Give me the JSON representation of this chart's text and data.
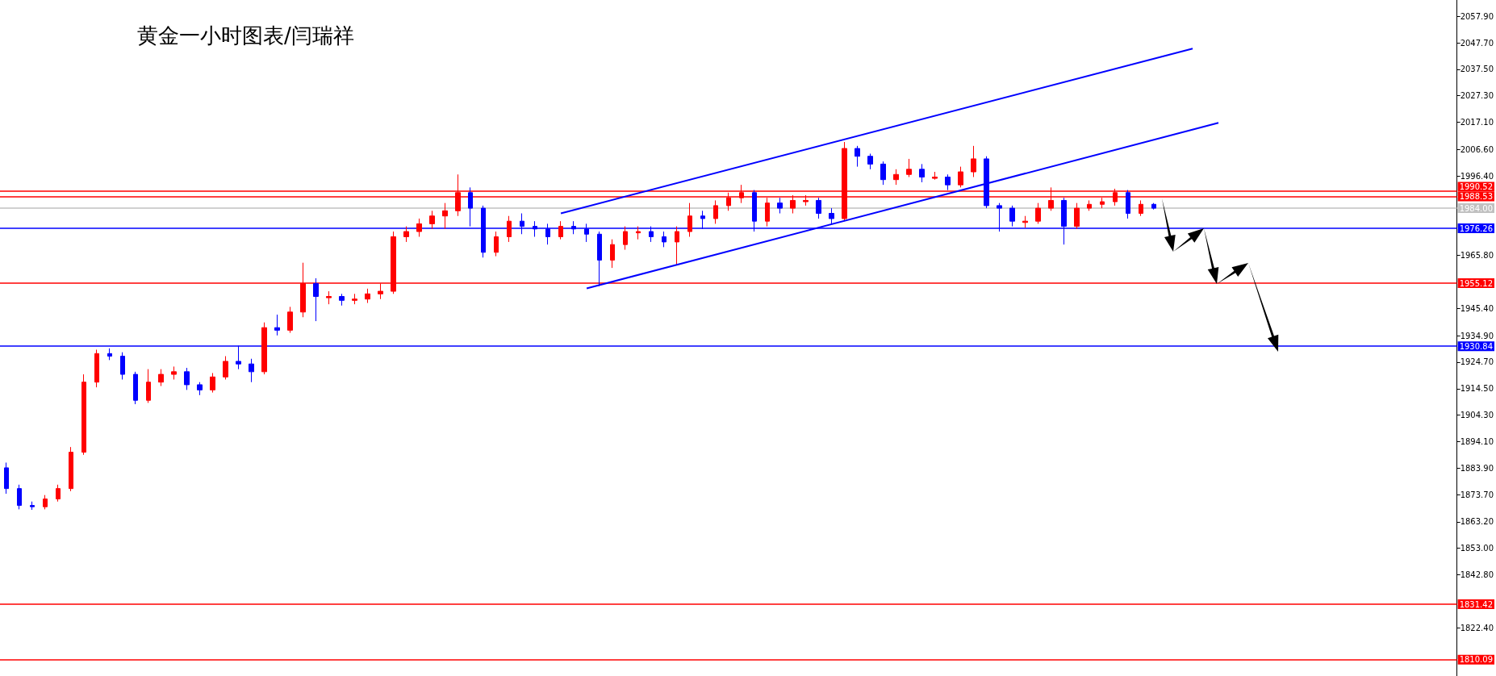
{
  "chart_data": {
    "type": "candlestick",
    "title": "黄金一小时图表/闫瑞祥",
    "categories": [
      null,
      null,
      null,
      null,
      null,
      null,
      null,
      null,
      null,
      null,
      null,
      null,
      null,
      null,
      null,
      null,
      null,
      null,
      null,
      null,
      null,
      null,
      null,
      null,
      null,
      null,
      null,
      null,
      null,
      null,
      null,
      null,
      null,
      null,
      null,
      null,
      null,
      null,
      null,
      null,
      null,
      null,
      null,
      null,
      null,
      null,
      null,
      null,
      null,
      null,
      null,
      null,
      null,
      null,
      null,
      null,
      null,
      null,
      null,
      null,
      null,
      null,
      null,
      null,
      null,
      null,
      null,
      null,
      null,
      null,
      null,
      null,
      null,
      null,
      null,
      null,
      null,
      null,
      null,
      null,
      null,
      null,
      null,
      null,
      null,
      null,
      null,
      null,
      null,
      null,
      null,
      null,
      null,
      null,
      null,
      null,
      null,
      null,
      null,
      null,
      null,
      null,
      null,
      null,
      null,
      null,
      null,
      null,
      null,
      null,
      null,
      null,
      null
    ],
    "ohlc": [
      [
        1884,
        1886,
        1874,
        1876
      ],
      [
        1876,
        1877.5,
        1868,
        1869.5
      ],
      [
        1869.5,
        1871,
        1867.8,
        1869
      ],
      [
        1869,
        1873.5,
        1868,
        1872
      ],
      [
        1872,
        1877.5,
        1871,
        1876
      ],
      [
        1876,
        1892,
        1875,
        1890
      ],
      [
        1890,
        1920,
        1889,
        1917
      ],
      [
        1917,
        1929.5,
        1915,
        1928
      ],
      [
        1928,
        1930,
        1925.5,
        1927
      ],
      [
        1927,
        1928.5,
        1918,
        1920
      ],
      [
        1920,
        1921,
        1908.5,
        1910
      ],
      [
        1910,
        1922,
        1909,
        1917
      ],
      [
        1917,
        1922,
        1915.5,
        1920
      ],
      [
        1920,
        1923,
        1918,
        1921
      ],
      [
        1921,
        1922.5,
        1914,
        1916
      ],
      [
        1916,
        1917,
        1912,
        1914
      ],
      [
        1914,
        1920.5,
        1913,
        1919
      ],
      [
        1919,
        1927,
        1918,
        1925
      ],
      [
        1925,
        1931,
        1922,
        1924
      ],
      [
        1924,
        1926,
        1917,
        1921
      ],
      [
        1921,
        1940,
        1920,
        1938
      ],
      [
        1938,
        1943,
        1935,
        1937
      ],
      [
        1937,
        1946,
        1936,
        1944
      ],
      [
        1944,
        1963,
        1942,
        1955
      ],
      [
        1955,
        1957,
        1940.5,
        1950
      ],
      [
        1949.5,
        1952,
        1947,
        1950
      ],
      [
        1950,
        1951,
        1946.5,
        1948.5
      ],
      [
        1948.5,
        1951,
        1947,
        1949
      ],
      [
        1949,
        1953,
        1947.5,
        1951
      ],
      [
        1951,
        1955,
        1949,
        1952
      ],
      [
        1952,
        1975,
        1951,
        1973
      ],
      [
        1973,
        1977,
        1971,
        1975
      ],
      [
        1975,
        1980,
        1973,
        1978
      ],
      [
        1978,
        1983,
        1976,
        1981
      ],
      [
        1981,
        1986,
        1976,
        1983
      ],
      [
        1983,
        1997,
        1981,
        1990
      ],
      [
        1990,
        1992,
        1977,
        1984
      ],
      [
        1984,
        1985,
        1965,
        1967
      ],
      [
        1967,
        1975,
        1965.5,
        1973
      ],
      [
        1973,
        1981,
        1971,
        1979
      ],
      [
        1979,
        1982,
        1974,
        1977
      ],
      [
        1977,
        1979,
        1973,
        1976
      ],
      [
        1976,
        1978,
        1970,
        1973
      ],
      [
        1973,
        1979,
        1972,
        1977
      ],
      [
        1977,
        1979,
        1974,
        1976
      ],
      [
        1976,
        1978,
        1971,
        1974
      ],
      [
        1974,
        1975,
        1954,
        1964
      ],
      [
        1964,
        1972,
        1961,
        1970
      ],
      [
        1970,
        1977,
        1968,
        1975
      ],
      [
        1974.5,
        1977,
        1972,
        1975
      ],
      [
        1975,
        1977,
        1971,
        1973
      ],
      [
        1973,
        1975,
        1969,
        1971
      ],
      [
        1971,
        1977,
        1962,
        1975
      ],
      [
        1975,
        1986,
        1973,
        1981
      ],
      [
        1981,
        1983,
        1976,
        1980
      ],
      [
        1980,
        1987,
        1978,
        1985
      ],
      [
        1985,
        1990,
        1983,
        1988
      ],
      [
        1988,
        1993,
        1986,
        1990
      ],
      [
        1990,
        1991,
        1975,
        1979
      ],
      [
        1979,
        1988,
        1977,
        1986
      ],
      [
        1986,
        1988,
        1982,
        1984
      ],
      [
        1984,
        1989,
        1982,
        1987
      ],
      [
        1986.5,
        1989,
        1985,
        1987
      ],
      [
        1987,
        1988,
        1980,
        1982
      ],
      [
        1982,
        1984,
        1978,
        1980
      ],
      [
        1980,
        2009.5,
        1979,
        2007
      ],
      [
        2007,
        2008,
        2000,
        2004
      ],
      [
        2004,
        2005,
        1999,
        2001
      ],
      [
        2001,
        2002,
        1993,
        1995
      ],
      [
        1995,
        1999,
        1993,
        1997
      ],
      [
        1997,
        2003,
        1996,
        1999
      ],
      [
        1999,
        2001,
        1994,
        1996
      ],
      [
        1995.5,
        1998,
        1995,
        1996
      ],
      [
        1996,
        1997,
        1991,
        1993
      ],
      [
        1993,
        2000,
        1992,
        1998
      ],
      [
        1998,
        2008,
        1996,
        2003
      ],
      [
        2003,
        2004,
        1984,
        1985
      ],
      [
        1985,
        1986,
        1975,
        1984
      ],
      [
        1984,
        1985,
        1977,
        1979
      ],
      [
        1978.5,
        1981,
        1976.5,
        1979
      ],
      [
        1979,
        1986,
        1978,
        1984
      ],
      [
        1984,
        1992,
        1983,
        1987
      ],
      [
        1987,
        1988,
        1970,
        1977
      ],
      [
        1977,
        1986,
        1976,
        1984
      ],
      [
        1984,
        1987,
        1983,
        1985.5
      ],
      [
        1985.5,
        1988,
        1984,
        1986.5
      ],
      [
        1986.5,
        1991.5,
        1985,
        1990
      ],
      [
        1990,
        1991,
        1980,
        1982
      ],
      [
        1982,
        1987,
        1981,
        1985.5
      ],
      [
        1985.5,
        1986,
        1983.5,
        1984
      ],
      null,
      null,
      null,
      null,
      null,
      null,
      null,
      null,
      null,
      null,
      null,
      null,
      null,
      null,
      null,
      null,
      null,
      null,
      null,
      null,
      null,
      null,
      null
    ],
    "colors": [
      "#0000ff",
      "#0000ff",
      "#0000ff",
      "#ff0000",
      "#ff0000",
      "#ff0000",
      "#ff0000",
      "#ff0000",
      "#0000ff",
      "#0000ff",
      "#0000ff",
      "#ff0000",
      "#ff0000",
      "#ff0000",
      "#0000ff",
      "#0000ff",
      "#ff0000",
      "#ff0000",
      "#0000ff",
      "#0000ff",
      "#ff0000",
      "#0000ff",
      "#ff0000",
      "#ff0000",
      "#0000ff",
      "#ff0000",
      "#0000ff",
      "#ff0000",
      "#ff0000",
      "#ff0000",
      "#ff0000",
      "#ff0000",
      "#ff0000",
      "#ff0000",
      "#ff0000",
      "#ff0000",
      "#0000ff",
      "#0000ff",
      "#ff0000",
      "#ff0000",
      "#0000ff",
      "#0000ff",
      "#0000ff",
      "#ff0000",
      "#0000ff",
      "#0000ff",
      "#0000ff",
      "#ff0000",
      "#ff0000",
      "#ff0000",
      "#0000ff",
      "#0000ff",
      "#ff0000",
      "#ff0000",
      "#0000ff",
      "#ff0000",
      "#ff0000",
      "#ff0000",
      "#0000ff",
      "#ff0000",
      "#0000ff",
      "#ff0000",
      "#ff0000",
      "#0000ff",
      "#0000ff",
      "#ff0000",
      "#0000ff",
      "#0000ff",
      "#0000ff",
      "#ff0000",
      "#ff0000",
      "#0000ff",
      "#ff0000",
      "#0000ff",
      "#ff0000",
      "#ff0000",
      "#0000ff",
      "#0000ff",
      "#0000ff",
      "#ff0000",
      "#ff0000",
      "#ff0000",
      "#0000ff",
      "#ff0000",
      "#ff0000",
      "#ff0000",
      "#ff0000",
      "#0000ff",
      "#ff0000",
      "#0000ff",
      null,
      null,
      null,
      null,
      null,
      null,
      null,
      null,
      null,
      null,
      null,
      null,
      null,
      null,
      null,
      null,
      null,
      null,
      null,
      null,
      null,
      null,
      null
    ],
    "series": [
      {
        "type": "line",
        "values": [
          null,
          null,
          null,
          null,
          null,
          null,
          null,
          null,
          null,
          null,
          null,
          null,
          null,
          null,
          null,
          null,
          null,
          null,
          null,
          null,
          null,
          null,
          null,
          null,
          null,
          null,
          null,
          null,
          null,
          null,
          null,
          null,
          null,
          null,
          null,
          null,
          null,
          null,
          null,
          null,
          null,
          null,
          null,
          1982.0,
          null,
          null,
          null,
          null,
          null,
          null,
          null,
          null,
          null,
          null,
          null,
          null,
          null,
          null,
          null,
          null,
          null,
          null,
          null,
          null,
          null,
          null,
          null,
          null,
          null,
          null,
          null,
          null,
          null,
          null,
          null,
          null,
          null,
          null,
          null,
          null,
          null,
          null,
          null,
          null,
          null,
          null,
          null,
          null,
          null,
          null,
          null,
          null,
          2045.5,
          null,
          null,
          null,
          null,
          null,
          null,
          null,
          null,
          null,
          null,
          null,
          null,
          null,
          null,
          null,
          null,
          null,
          null,
          null,
          null
        ],
        "color": "#0000ff"
      },
      {
        "type": "line",
        "values": [
          null,
          null,
          null,
          null,
          null,
          null,
          null,
          null,
          null,
          null,
          null,
          null,
          null,
          null,
          null,
          null,
          null,
          null,
          null,
          null,
          null,
          null,
          null,
          null,
          null,
          null,
          null,
          null,
          null,
          null,
          null,
          null,
          null,
          null,
          null,
          null,
          null,
          null,
          null,
          null,
          null,
          null,
          null,
          null,
          null,
          1953.1,
          null,
          null,
          null,
          null,
          null,
          null,
          null,
          null,
          null,
          null,
          null,
          null,
          null,
          null,
          null,
          null,
          null,
          null,
          null,
          null,
          null,
          null,
          null,
          null,
          null,
          null,
          null,
          null,
          null,
          null,
          null,
          null,
          null,
          null,
          null,
          null,
          null,
          null,
          null,
          null,
          null,
          null,
          null,
          null,
          null,
          null,
          null,
          null,
          2016.9,
          null,
          null,
          null,
          null,
          null,
          null,
          null,
          null,
          null,
          null,
          null,
          null,
          null,
          null,
          null,
          null,
          null,
          null
        ],
        "color": "#0000ff"
      }
    ],
    "ylim": [
      1803.8,
      2064.2
    ],
    "yticks": [
      {
        "value": 2057.9,
        "label": "2057.90"
      },
      {
        "value": 2047.7,
        "label": "2047.70"
      },
      {
        "value": 2037.5,
        "label": "2037.50"
      },
      {
        "value": 2027.3,
        "label": "2027.30"
      },
      {
        "value": 2017.1,
        "label": "2017.10"
      },
      {
        "value": 2006.6,
        "label": "2006.60"
      },
      {
        "value": 1996.4,
        "label": "1996.40"
      },
      {
        "value": 1965.8,
        "label": "1965.80"
      },
      {
        "value": 1945.4,
        "label": "1945.40"
      },
      {
        "value": 1934.9,
        "label": "1934.90"
      },
      {
        "value": 1924.7,
        "label": "1924.70"
      },
      {
        "value": 1914.5,
        "label": "1914.50"
      },
      {
        "value": 1904.3,
        "label": "1904.30"
      },
      {
        "value": 1894.1,
        "label": "1894.10"
      },
      {
        "value": 1883.9,
        "label": "1883.90"
      },
      {
        "value": 1873.7,
        "label": "1873.70"
      },
      {
        "value": 1863.2,
        "label": "1863.20"
      },
      {
        "value": 1853.0,
        "label": "1853.00"
      },
      {
        "value": 1842.8,
        "label": "1842.80"
      },
      {
        "value": 1822.4,
        "label": "1822.40"
      }
    ],
    "ref_lines": [
      {
        "axis": "y",
        "value": 1990.52,
        "label": "1990.52",
        "color": "#ff0000"
      },
      {
        "axis": "y",
        "value": 1988.53,
        "label": "1988.53",
        "color": "#ff0000"
      },
      {
        "axis": "y",
        "value": 1984.0,
        "label": "1984.00",
        "color": "#c0c0c0"
      },
      {
        "axis": "y",
        "value": 1976.26,
        "label": "1976.26",
        "color": "#0000ff"
      },
      {
        "axis": "y",
        "value": 1955.12,
        "label": "1955.12",
        "color": "#ff0000"
      },
      {
        "axis": "y",
        "value": 1930.84,
        "label": "1930.84",
        "color": "#0000ff"
      },
      {
        "axis": "y",
        "value": 1831.42,
        "label": "1831.42",
        "color": "#ff0000"
      },
      {
        "axis": "y",
        "value": 1810.09,
        "label": "1810.09",
        "color": "#ff0000"
      }
    ],
    "tick_labels": "y",
    "grid": false
  }
}
